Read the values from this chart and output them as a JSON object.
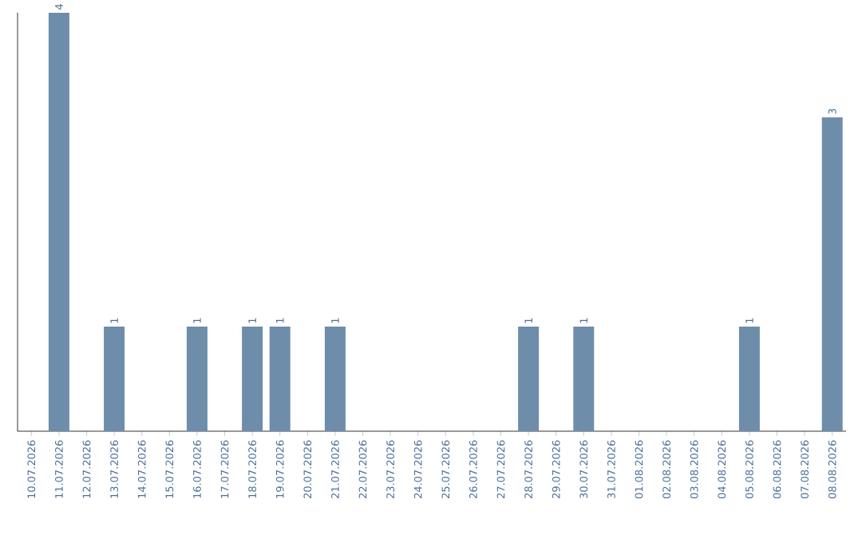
{
  "chart_data": {
    "type": "bar",
    "categories": [
      "10.07.2026",
      "11.07.2026",
      "12.07.2026",
      "13.07.2026",
      "14.07.2026",
      "15.07.2026",
      "16.07.2026",
      "17.07.2026",
      "18.07.2026",
      "19.07.2026",
      "20.07.2026",
      "21.07.2026",
      "22.07.2026",
      "23.07.2026",
      "24.07.2026",
      "25.07.2026",
      "26.07.2026",
      "27.07.2026",
      "28.07.2026",
      "29.07.2026",
      "30.07.2026",
      "31.07.2026",
      "01.08.2026",
      "02.08.2026",
      "03.08.2026",
      "04.08.2026",
      "05.08.2026",
      "06.08.2026",
      "07.08.2026",
      "08.08.2026"
    ],
    "values": [
      0,
      4,
      0,
      1,
      0,
      0,
      1,
      0,
      1,
      1,
      0,
      1,
      0,
      0,
      0,
      0,
      0,
      0,
      1,
      0,
      1,
      0,
      0,
      0,
      0,
      0,
      1,
      0,
      0,
      3
    ],
    "value_labels": [
      null,
      "4",
      null,
      "1",
      null,
      null,
      "1",
      null,
      "1",
      "1",
      null,
      "1",
      null,
      null,
      null,
      null,
      null,
      null,
      "1",
      null,
      "1",
      null,
      null,
      null,
      null,
      null,
      "1",
      null,
      null,
      "3"
    ],
    "color": "#6d8dab",
    "tick_labels": "x"
  }
}
